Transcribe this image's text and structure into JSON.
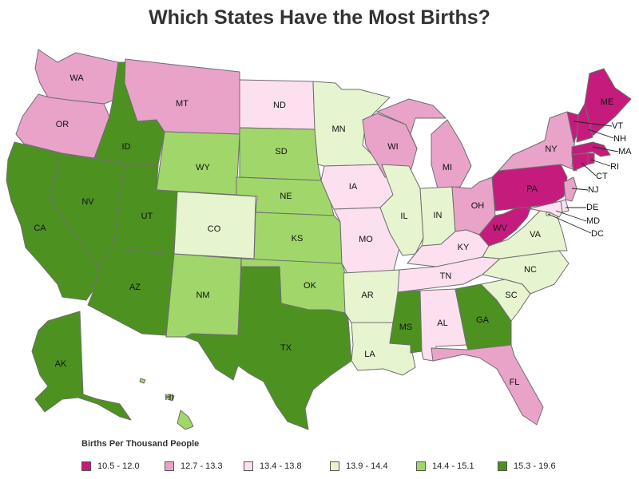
{
  "title": "Which States Have the Most Births?",
  "legend": {
    "title": "Births Per Thousand People",
    "bins": [
      {
        "label": "10.5 - 12.0",
        "color": "#c51b7d"
      },
      {
        "label": "12.7 - 13.3",
        "color": "#e9a3c9"
      },
      {
        "label": "13.4 - 13.8",
        "color": "#fde0ef"
      },
      {
        "label": "13.9 - 14.4",
        "color": "#e6f5d0"
      },
      {
        "label": "14.4 - 15.1",
        "color": "#a1d76a"
      },
      {
        "label": "15.3 - 19.6",
        "color": "#4d9221"
      }
    ]
  },
  "states": {
    "WA": 1,
    "OR": 1,
    "CA": 5,
    "ID": 5,
    "NV": 5,
    "MT": 1,
    "WY": 4,
    "UT": 5,
    "AZ": 5,
    "CO": 3,
    "NM": 4,
    "ND": 2,
    "SD": 4,
    "NE": 4,
    "KS": 4,
    "OK": 4,
    "TX": 5,
    "MN": 3,
    "IA": 2,
    "MO": 2,
    "AR": 3,
    "LA": 3,
    "WI": 1,
    "IL": 3,
    "MI": 1,
    "IN": 3,
    "OH": 1,
    "KY": 2,
    "TN": 2,
    "MS": 5,
    "AL": 2,
    "GA": 5,
    "FL": 1,
    "SC": 3,
    "NC": 3,
    "VA": 3,
    "WV": 0,
    "PA": 0,
    "NY": 1,
    "VT": 0,
    "NH": 0,
    "ME": 0,
    "MA": 0,
    "RI": 0,
    "CT": 0,
    "NJ": 1,
    "DE": 2,
    "MD": 2,
    "DC": 3,
    "AK": 5,
    "HI": 4
  }
}
